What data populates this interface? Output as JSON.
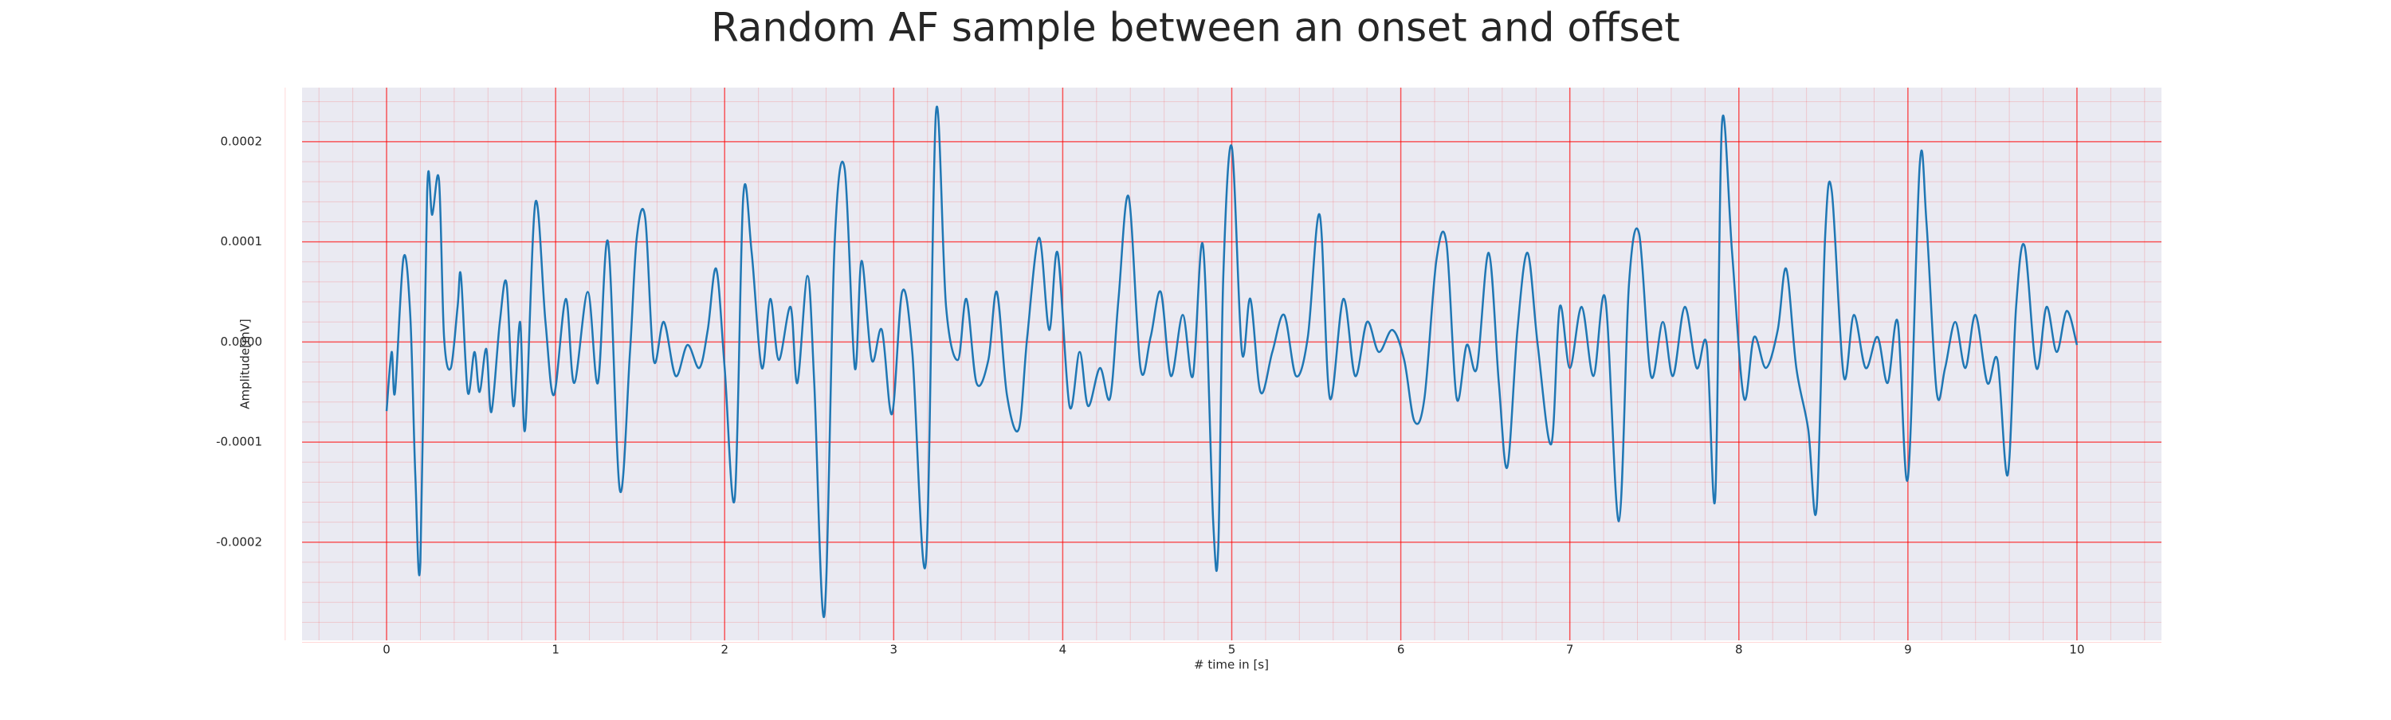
{
  "chart_data": {
    "type": "line",
    "title": "Random AF sample between an onset and offset",
    "x_label": "# time in [s]",
    "y_label": "Amplitude[mV]",
    "xlim": [
      -0.5,
      10.5
    ],
    "ylim": [
      -0.000298,
      0.000254
    ],
    "xticks": [
      0,
      1,
      2,
      3,
      4,
      5,
      6,
      7,
      8,
      9,
      10
    ],
    "yticks": [
      -0.0002,
      -0.0001,
      {
        "value": 0,
        "label": "0.0000"
      },
      0.0001,
      0.0002
    ],
    "grid": true,
    "grid_color": "#ff0000",
    "background": "#eaeaf2",
    "series": [
      {
        "color": "#1f77b4",
        "x": [
          0,
          0.03,
          0.05,
          0.1,
          0.14,
          0.17,
          0.2,
          0.24,
          0.27,
          0.31,
          0.34,
          0.38,
          0.42,
          0.44,
          0.48,
          0.52,
          0.55,
          0.59,
          0.62,
          0.67,
          0.71,
          0.75,
          0.79,
          0.82,
          0.88,
          0.94,
          0.99,
          1.06,
          1.11,
          1.19,
          1.25,
          1.31,
          1.38,
          1.44,
          1.48,
          1.53,
          1.58,
          1.64,
          1.71,
          1.78,
          1.85,
          1.9,
          1.95,
          2.0,
          2.06,
          2.11,
          2.16,
          2.22,
          2.27,
          2.32,
          2.39,
          2.43,
          2.49,
          2.53,
          2.59,
          2.65,
          2.71,
          2.77,
          2.81,
          2.87,
          2.93,
          2.99,
          3.05,
          3.11,
          3.19,
          3.25,
          3.31,
          3.38,
          3.43,
          3.49,
          3.56,
          3.61,
          3.67,
          3.74,
          3.79,
          3.86,
          3.92,
          3.97,
          4.04,
          4.1,
          4.15,
          4.22,
          4.28,
          4.33,
          4.39,
          4.46,
          4.52,
          4.58,
          4.64,
          4.71,
          4.77,
          4.83,
          4.89,
          4.92,
          4.95,
          5.0,
          5.06,
          5.11,
          5.17,
          5.24,
          5.31,
          5.38,
          5.45,
          5.52,
          5.58,
          5.66,
          5.73,
          5.8,
          5.87,
          5.95,
          6.02,
          6.08,
          6.14,
          6.21,
          6.27,
          6.33,
          6.39,
          6.45,
          6.52,
          6.58,
          6.63,
          6.69,
          6.75,
          6.81,
          6.89,
          6.94,
          7.0,
          7.07,
          7.14,
          7.21,
          7.29,
          7.35,
          7.41,
          7.48,
          7.55,
          7.61,
          7.68,
          7.75,
          7.81,
          7.86,
          7.9,
          7.96,
          8.03,
          8.09,
          8.16,
          8.23,
          8.28,
          8.34,
          8.41,
          8.46,
          8.51,
          8.55,
          8.62,
          8.68,
          8.75,
          8.82,
          8.88,
          8.94,
          9.0,
          9.07,
          9.11,
          9.17,
          9.22,
          9.28,
          9.34,
          9.4,
          9.47,
          9.53,
          9.59,
          9.64,
          9.69,
          9.76,
          9.82,
          9.88,
          9.94,
          10.0
        ],
        "values": [
          -6.9e-05,
          -1e-05,
          -5e-05,
          8.4e-05,
          2.7e-05,
          -0.000133,
          -0.00022,
          0.00015,
          0.000127,
          0.000162,
          5e-06,
          -2.6e-05,
          3.5e-05,
          6.6e-05,
          -5e-05,
          -1e-05,
          -5e-05,
          -7e-06,
          -7e-05,
          2e-05,
          5.8e-05,
          -6.4e-05,
          2e-05,
          -8.7e-05,
          0.000139,
          2e-05,
          -5.3e-05,
          4.3e-05,
          -4.1e-05,
          5e-05,
          -4.1e-05,
          0.0001,
          -0.000148,
          -1e-05,
          0.000104,
          0.000124,
          -1.8e-05,
          2e-05,
          -3.4e-05,
          -3e-06,
          -2.6e-05,
          1.2e-05,
          7.3e-05,
          -2.6e-05,
          -0.000156,
          0.000145,
          8.9e-05,
          -2.6e-05,
          4.3e-05,
          -1.8e-05,
          3.5e-05,
          -4.1e-05,
          6.6e-05,
          -4.1e-05,
          -0.000273,
          9.6e-05,
          0.000173,
          -2.6e-05,
          8.1e-05,
          -1.8e-05,
          1.2e-05,
          -7.2e-05,
          5e-05,
          -1e-05,
          -0.000221,
          0.000229,
          3.5e-05,
          -1.8e-05,
          4.3e-05,
          -4.1e-05,
          -1.8e-05,
          5e-05,
          -5.3e-05,
          -8.7e-05,
          5e-06,
          0.000104,
          1.2e-05,
          8.9e-05,
          -6.4e-05,
          -1e-05,
          -6.4e-05,
          -2.6e-05,
          -5.6e-05,
          4.3e-05,
          0.000145,
          -2.6e-05,
          5e-06,
          5e-05,
          -3.4e-05,
          2.7e-05,
          -3.4e-05,
          9.6e-05,
          -0.000179,
          -0.000206,
          6.6e-05,
          0.000195,
          -1e-05,
          4.3e-05,
          -5e-05,
          -1e-05,
          2.7e-05,
          -3.4e-05,
          5e-06,
          0.000127,
          -5.6e-05,
          4.3e-05,
          -3.4e-05,
          2e-05,
          -1e-05,
          1.2e-05,
          -1.8e-05,
          -7.9e-05,
          -5.6e-05,
          8.1e-05,
          9.9e-05,
          -5.6e-05,
          -3e-06,
          -2.6e-05,
          8.9e-05,
          -4.1e-05,
          -0.000125,
          1.2e-05,
          8.9e-05,
          -3e-06,
          -0.000102,
          3.5e-05,
          -2.6e-05,
          3.5e-05,
          -3.4e-05,
          4.3e-05,
          -0.000179,
          5.8e-05,
          0.000108,
          -3.4e-05,
          2e-05,
          -3.4e-05,
          3.5e-05,
          -2.6e-05,
          -3e-06,
          -0.000156,
          0.000218,
          8.9e-05,
          -5.6e-05,
          5e-06,
          -2.6e-05,
          1.2e-05,
          7.3e-05,
          -2.6e-05,
          -8.7e-05,
          -0.000166,
          0.000104,
          0.00015,
          -3.4e-05,
          2.7e-05,
          -2.6e-05,
          5e-06,
          -4.1e-05,
          2e-05,
          -0.000136,
          0.000177,
          0.000119,
          -5e-05,
          -2.6e-05,
          2e-05,
          -2.6e-05,
          2.7e-05,
          -4.1e-05,
          -1.8e-05,
          -0.000133,
          3.5e-05,
          9.6e-05,
          -2.6e-05,
          3.5e-05,
          -1e-05,
          3.1e-05,
          -3e-06
        ]
      }
    ]
  }
}
